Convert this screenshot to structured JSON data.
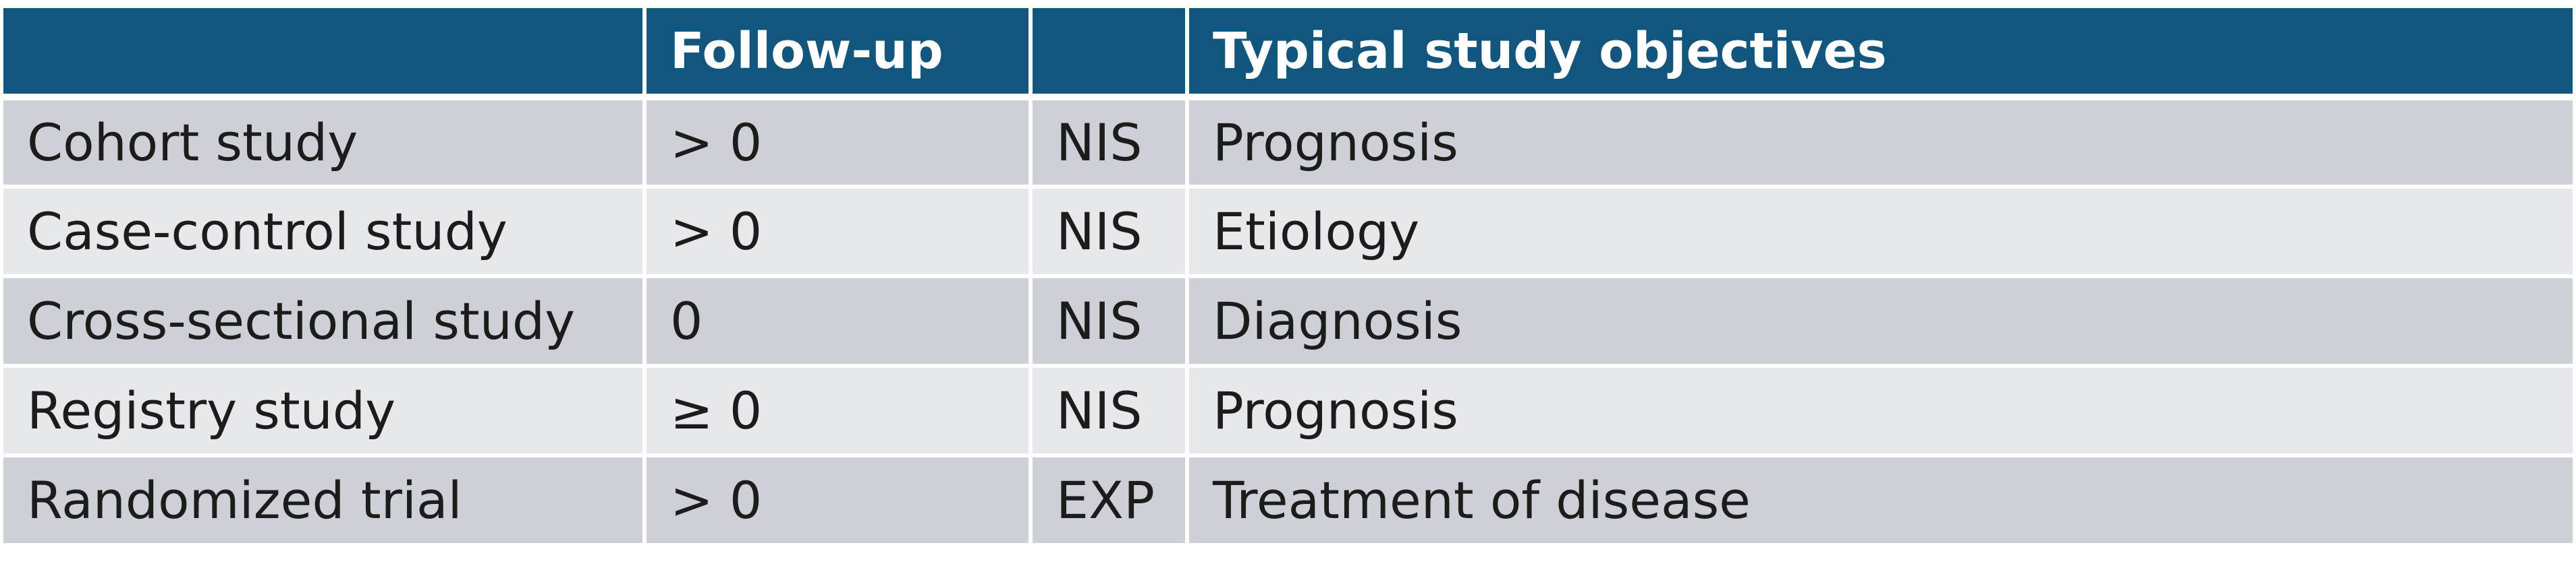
{
  "header": [
    "",
    "Follow-up",
    "",
    "Typical study objectives"
  ],
  "rows": [
    [
      "Cohort study",
      "> 0",
      "NIS",
      "Prognosis"
    ],
    [
      "Case-control study",
      "> 0",
      "NIS",
      "Etiology"
    ],
    [
      "Cross-sectional study",
      "0",
      "NIS",
      "Diagnosis"
    ],
    [
      "Registry study",
      "≥ 0",
      "NIS",
      "Prognosis"
    ],
    [
      "Randomized trial",
      "> 0",
      "EXP",
      "Treatment of disease"
    ]
  ],
  "colors": {
    "header_bg": "#12557d",
    "row_odd_bg": "#cdd0d7",
    "row_even_bg": "#e7e8ec"
  }
}
